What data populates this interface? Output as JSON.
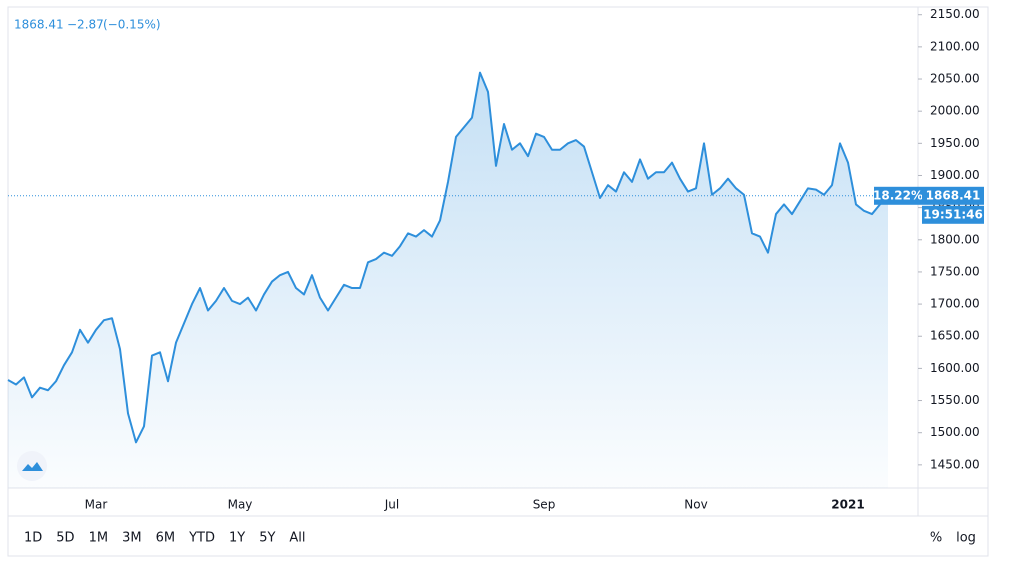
{
  "chart_data": {
    "type": "line",
    "header": {
      "price": "1868.41",
      "change": "−2.87",
      "change_pct": "(−0.15%)"
    },
    "categories": [
      null,
      null,
      null,
      null,
      null,
      null,
      null,
      null,
      null,
      null,
      null,
      "Mar",
      null,
      null,
      null,
      null,
      null,
      null,
      null,
      null,
      null,
      null,
      null,
      null,
      null,
      null,
      null,
      null,
      null,
      "May",
      null,
      null,
      null,
      null,
      null,
      null,
      null,
      null,
      null,
      null,
      null,
      null,
      null,
      null,
      null,
      null,
      null,
      null,
      "Jul",
      null,
      null,
      null,
      null,
      null,
      null,
      null,
      null,
      null,
      null,
      null,
      null,
      null,
      null,
      null,
      null,
      null,
      null,
      "Sep",
      null,
      null,
      null,
      null,
      null,
      null,
      null,
      null,
      null,
      null,
      null,
      null,
      null,
      null,
      null,
      null,
      null,
      null,
      "Nov",
      null,
      null,
      null,
      null,
      null,
      null,
      null,
      null,
      null,
      null,
      null,
      null,
      null,
      null,
      null,
      null,
      null,
      null,
      "2021",
      null,
      null,
      null,
      null,
      null
    ],
    "series": [
      {
        "color": "#2e8fdb",
        "values": [
          1582,
          1575,
          1586,
          1555,
          1570,
          1566,
          1580,
          1605,
          1625,
          1660,
          1640,
          1660,
          1675,
          1678,
          1630,
          1530,
          1485,
          1510,
          1620,
          1625,
          1580,
          1640,
          1670,
          1700,
          1725,
          1690,
          1705,
          1725,
          1705,
          1700,
          1710,
          1690,
          1715,
          1735,
          1745,
          1750,
          1725,
          1715,
          1745,
          1710,
          1690,
          1710,
          1730,
          1725,
          1725,
          1765,
          1770,
          1780,
          1775,
          1790,
          1810,
          1805,
          1815,
          1805,
          1830,
          1890,
          1960,
          1975,
          1990,
          2060,
          2030,
          1915,
          1980,
          1940,
          1950,
          1930,
          1965,
          1960,
          1940,
          1940,
          1950,
          1955,
          1945,
          1905,
          1865,
          1885,
          1875,
          1905,
          1890,
          1925,
          1895,
          1905,
          1905,
          1920,
          1895,
          1875,
          1880,
          1950,
          1870,
          1880,
          1895,
          1880,
          1870,
          1810,
          1805,
          1780,
          1840,
          1855,
          1840,
          1860,
          1880,
          1878,
          1870,
          1885,
          1950,
          1920,
          1855,
          1845,
          1840,
          1855,
          1868.41
        ]
      }
    ],
    "ylim": [
      1414,
      2162
    ],
    "yticks": [
      {
        "value": 1450,
        "label": "1450.00"
      },
      {
        "value": 1500,
        "label": "1500.00"
      },
      {
        "value": 1550,
        "label": "1550.00"
      },
      {
        "value": 1600,
        "label": "1600.00"
      },
      {
        "value": 1650,
        "label": "1650.00"
      },
      {
        "value": 1700,
        "label": "1700.00"
      },
      {
        "value": 1750,
        "label": "1750.00"
      },
      {
        "value": 1800,
        "label": "1800.00"
      },
      {
        "value": 1850,
        "label": "1850.00"
      },
      {
        "value": 1900,
        "label": "1900.00"
      },
      {
        "value": 1950,
        "label": "1950.00"
      },
      {
        "value": 2000,
        "label": "2000.00"
      },
      {
        "value": 2050,
        "label": "2050.00"
      },
      {
        "value": 2100,
        "label": "2100.00"
      },
      {
        "value": 2150,
        "label": "2150.00"
      }
    ],
    "price_label": {
      "value": 1868.41,
      "label": "1868.41"
    },
    "percent_label": "18.22%",
    "time_label": "19:51:46",
    "ranges": [
      "1D",
      "5D",
      "1M",
      "3M",
      "6M",
      "YTD",
      "1Y",
      "5Y",
      "All"
    ],
    "percent_toggle": "%",
    "log_toggle": "log",
    "log_scale": false
  }
}
